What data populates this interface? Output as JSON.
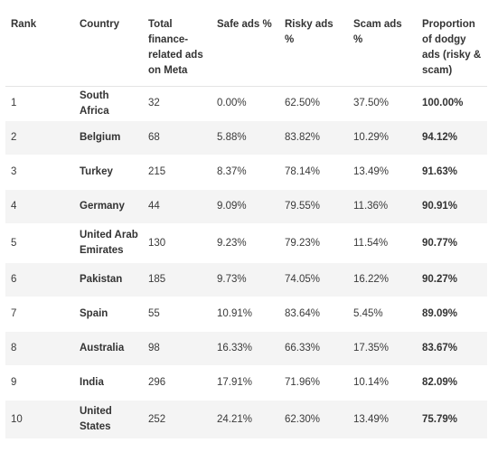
{
  "table": {
    "headers": {
      "rank": "Rank",
      "country": "Country",
      "total": "Total finance-related ads on Meta",
      "safe": "Safe ads %",
      "risky": "Risky ads %",
      "scam": "Scam ads %",
      "proportion": "Proportion of dodgy ads (risky & scam)"
    },
    "rows": [
      {
        "rank": "1",
        "country": "South Africa",
        "total": "32",
        "safe": "0.00%",
        "risky": "62.50%",
        "scam": "37.50%",
        "proportion": "100.00%"
      },
      {
        "rank": "2",
        "country": "Belgium",
        "total": "68",
        "safe": "5.88%",
        "risky": "83.82%",
        "scam": "10.29%",
        "proportion": "94.12%"
      },
      {
        "rank": "3",
        "country": "Turkey",
        "total": "215",
        "safe": "8.37%",
        "risky": "78.14%",
        "scam": "13.49%",
        "proportion": "91.63%"
      },
      {
        "rank": "4",
        "country": "Germany",
        "total": "44",
        "safe": "9.09%",
        "risky": "79.55%",
        "scam": "11.36%",
        "proportion": "90.91%"
      },
      {
        "rank": "5",
        "country": "United Arab Emirates",
        "total": "130",
        "safe": "9.23%",
        "risky": "79.23%",
        "scam": "11.54%",
        "proportion": "90.77%"
      },
      {
        "rank": "6",
        "country": "Pakistan",
        "total": "185",
        "safe": "9.73%",
        "risky": "74.05%",
        "scam": "16.22%",
        "proportion": "90.27%"
      },
      {
        "rank": "7",
        "country": "Spain",
        "total": "55",
        "safe": "10.91%",
        "risky": "83.64%",
        "scam": "5.45%",
        "proportion": "89.09%"
      },
      {
        "rank": "8",
        "country": "Australia",
        "total": "98",
        "safe": "16.33%",
        "risky": "66.33%",
        "scam": "17.35%",
        "proportion": "83.67%"
      },
      {
        "rank": "9",
        "country": "India",
        "total": "296",
        "safe": "17.91%",
        "risky": "71.96%",
        "scam": "10.14%",
        "proportion": "82.09%"
      },
      {
        "rank": "10",
        "country": "United States",
        "total": "252",
        "safe": "24.21%",
        "risky": "62.30%",
        "scam": "13.49%",
        "proportion": "75.79%"
      }
    ]
  },
  "colors": {
    "row_stripe": "#f4f4f4",
    "text": "#3a3a3a"
  }
}
